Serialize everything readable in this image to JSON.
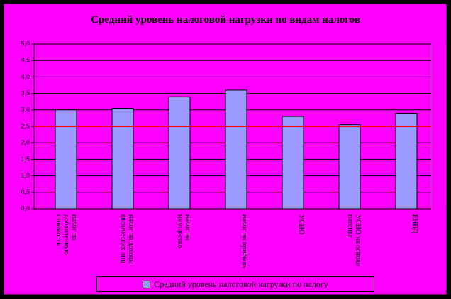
{
  "chart_data": {
    "type": "bar",
    "title": "Средний уровень налоговой нагрузки по видам налогов",
    "categories": [
      "налог на добавленную стоимость",
      "налог на доходы физических лиц",
      "налог на имущество",
      "налог на прибыль",
      "УСНО",
      "УСНО на основе патента",
      "ЕНВД"
    ],
    "series": [
      {
        "name": "Средний уровень налоговой нагрузки по налогу",
        "color": "#9999ff",
        "values": [
          3.0,
          3.05,
          3.4,
          3.6,
          2.8,
          2.55,
          2.9
        ]
      }
    ],
    "reference_line": {
      "value": 2.5,
      "color": "#ff0000"
    },
    "ylim": [
      0,
      5
    ],
    "yticks": [
      {
        "value": 0,
        "label": "0,0"
      },
      {
        "value": 0.5,
        "label": "0,5"
      },
      {
        "value": 1,
        "label": "1,0"
      },
      {
        "value": 1.5,
        "label": "1,5"
      },
      {
        "value": 2,
        "label": "2,0"
      },
      {
        "value": 2.5,
        "label": "2,5"
      },
      {
        "value": 3,
        "label": "3,0"
      },
      {
        "value": 3.5,
        "label": "3,5"
      },
      {
        "value": 4,
        "label": "4,0"
      },
      {
        "value": 4.5,
        "label": "4,5"
      },
      {
        "value": 5,
        "label": "5,0"
      }
    ],
    "grid": true
  }
}
